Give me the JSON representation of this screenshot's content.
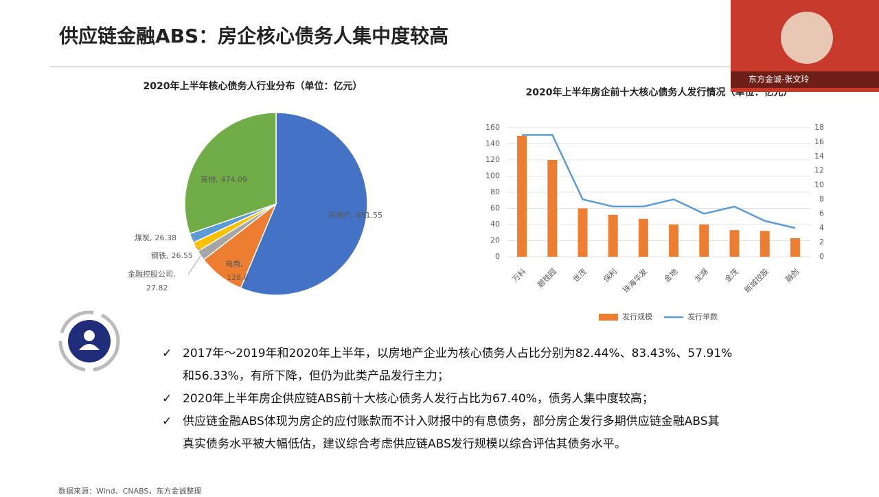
{
  "title": "供应链金融ABS：房企核心债务人集中度较高",
  "chart_data": [
    {
      "type": "pie",
      "title": "2020年上半年核心债务人行业分布（单位：亿元）",
      "categories": [
        "房地产",
        "电商",
        "金融控股公司",
        "钢铁",
        "煤炭",
        "其他"
      ],
      "values": [
        881.55,
        128.6,
        27.82,
        26.55,
        26.38,
        474.09
      ],
      "colors": [
        "#4472c4",
        "#ed7d31",
        "#a5a5a5",
        "#ffc000",
        "#5b9bd5",
        "#70ad47"
      ]
    },
    {
      "type": "bar-line",
      "title": "2020年上半年房企前十大核心债务人发行情况（单位：亿元）",
      "categories": [
        "万科",
        "碧桂园",
        "世茂",
        "保利",
        "珠海华发",
        "金地",
        "龙湖",
        "金茂",
        "新城控股",
        "融创"
      ],
      "series": [
        {
          "name": "发行规模",
          "type": "bar",
          "color": "#ed7d31",
          "values": [
            150,
            120,
            60,
            52,
            47,
            40,
            40,
            33,
            32,
            23
          ]
        },
        {
          "name": "发行单数",
          "type": "line",
          "axis": "y2",
          "color": "#5b9bd5",
          "values": [
            17,
            17,
            8,
            7,
            7,
            8,
            6,
            7,
            5,
            4
          ]
        }
      ],
      "ylim": [
        0,
        160
      ],
      "yticks": [
        0,
        20,
        40,
        60,
        80,
        100,
        120,
        140,
        160
      ],
      "y2lim": [
        0,
        18
      ],
      "y2ticks": [
        0,
        2,
        4,
        6,
        8,
        10,
        12,
        14,
        16,
        18
      ],
      "grid": true,
      "legend": "bottom"
    }
  ],
  "bullets": [
    [
      "2017年～2019年和2020年上半年，以房地产企业为核心债务人占比分别为82.44%、83.43%、57.91%",
      "和56.33%，有所下降，但仍为此类产品发行主力；"
    ],
    [
      "2020年上半年房企供应链ABS前十大核心债务人发行占比为67.40%，债务人集中度较高；"
    ],
    [
      "供应链金融ABS体现为房企的应付账款而不计入财报中的有息债务，部分房企发行多期供应链金融ABS其",
      "真实债务水平被大幅低估，建议综合考虑供应链ABS发行规模以综合评估其债务水平。"
    ]
  ],
  "check": "✓",
  "source": "数据来源：Wind、CNABS，东方金诚整理",
  "presenter": "东方金诚-张文玲"
}
